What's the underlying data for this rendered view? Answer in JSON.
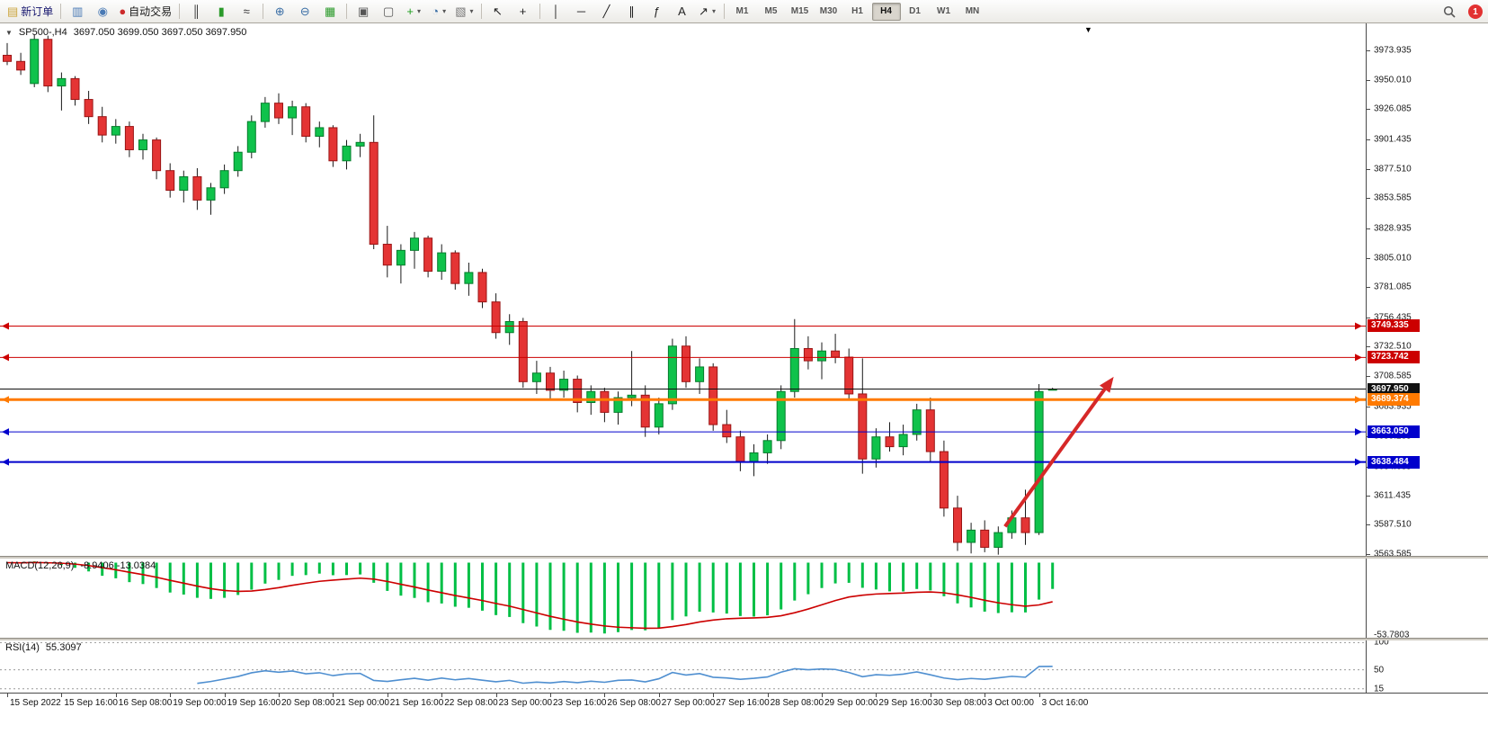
{
  "toolbar": {
    "items": [
      {
        "name": "new-order-button",
        "glyph": "▤",
        "glyph_color": "#caa43a",
        "label": "新订单",
        "label_color": "#16166e"
      },
      {
        "kind": "sep"
      },
      {
        "name": "charts-window-button",
        "glyph": "▥",
        "glyph_color": "#4a7ab5"
      },
      {
        "name": "data-window-button",
        "glyph": "◉",
        "glyph_color": "#4a7ab5"
      },
      {
        "name": "auto-trading-button",
        "glyph": "●",
        "glyph_color": "#cc2b2b",
        "label": "自动交易",
        "label_color": "#1a1a1a"
      },
      {
        "kind": "sep"
      },
      {
        "name": "bars-chart-button",
        "glyph": "║",
        "glyph_color": "#333333"
      },
      {
        "name": "candlestick-chart-button",
        "glyph": "▮",
        "glyph_color": "#2a9a2a"
      },
      {
        "name": "line-chart-button",
        "glyph": "≈",
        "glyph_color": "#333333"
      },
      {
        "kind": "sep"
      },
      {
        "name": "zoom-in-button",
        "glyph": "⊕",
        "glyph_color": "#3a6ea5"
      },
      {
        "name": "zoom-out-button",
        "glyph": "⊖",
        "glyph_color": "#3a6ea5"
      },
      {
        "name": "grid-button",
        "glyph": "▦",
        "glyph_color": "#2a9a2a"
      },
      {
        "kind": "sep"
      },
      {
        "name": "tile-windows-button",
        "glyph": "▣",
        "glyph_color": "#555555"
      },
      {
        "name": "arrange-windows-button",
        "glyph": "▢",
        "glyph_color": "#555555"
      },
      {
        "name": "indicators-button",
        "glyph": "+",
        "glyph_color": "#1f9e1f",
        "dropdown": true
      },
      {
        "name": "periods-button",
        "glyph": "◔",
        "glyph_color": "#3a6ea5",
        "dropdown": true
      },
      {
        "name": "templates-button",
        "glyph": "▧",
        "glyph_color": "#777777",
        "dropdown": true
      },
      {
        "kind": "sep"
      },
      {
        "name": "cursor-button",
        "glyph": "↖",
        "glyph_color": "#222222"
      },
      {
        "name": "crosshair-button",
        "glyph": "+",
        "glyph_color": "#222222"
      },
      {
        "kind": "sep"
      },
      {
        "name": "vertical-line-button",
        "glyph": "│",
        "glyph_color": "#222222"
      },
      {
        "name": "horizontal-line-button",
        "glyph": "─",
        "glyph_color": "#222222"
      },
      {
        "name": "trendline-button",
        "glyph": "╱",
        "glyph_color": "#222222"
      },
      {
        "name": "channel-button",
        "glyph": "∥",
        "glyph_color": "#222222"
      },
      {
        "name": "fibonacci-button",
        "glyph": "ƒ",
        "glyph_color": "#222222"
      },
      {
        "name": "text-button",
        "glyph": "A",
        "glyph_color": "#222222"
      },
      {
        "name": "arrows-button",
        "glyph": "↗",
        "glyph_color": "#222222",
        "dropdown": true
      },
      {
        "kind": "sep"
      }
    ],
    "timeframes": [
      "M1",
      "M5",
      "M15",
      "M30",
      "H1",
      "H4",
      "D1",
      "W1",
      "MN"
    ],
    "active_timeframe": "H4",
    "notification_count": "1"
  },
  "chart": {
    "symbol_label": "SP500-,H4",
    "ohlc_label": "3697.050 3699.050 3697.050 3697.950",
    "shift_marker": "▼",
    "dropdown_glyph": "▼",
    "macd_label": "MACD(12,26,9)",
    "macd_values": "-8.9406 -13.0384",
    "rsi_label": "RSI(14)",
    "rsi_value": "55.3097"
  },
  "chart_data": {
    "type": "candlestick",
    "symbol": "SP500-",
    "timeframe": "H4",
    "current_bar": {
      "open": 3697.05,
      "high": 3699.05,
      "low": 3697.05,
      "close": 3697.95
    },
    "ylim": [
      3562,
      3996
    ],
    "rsi_ylim": [
      8,
      104
    ],
    "bars_per_label": 4,
    "x_labels": [
      "15 Sep 2022",
      "15 Sep 16:00",
      "16 Sep 08:00",
      "19 Sep 00:00",
      "19 Sep 16:00",
      "20 Sep 08:00",
      "21 Sep 00:00",
      "21 Sep 16:00",
      "22 Sep 08:00",
      "23 Sep 00:00",
      "23 Sep 16:00",
      "26 Sep 08:00",
      "27 Sep 00:00",
      "27 Sep 16:00",
      "28 Sep 08:00",
      "29 Sep 00:00",
      "29 Sep 16:00",
      "30 Sep 08:00",
      "3 Oct 00:00",
      "3 Oct 16:00"
    ],
    "price_ticks": [
      "3973.935",
      "3950.010",
      "3926.085",
      "3901.435",
      "3877.510",
      "3853.585",
      "3828.935",
      "3805.010",
      "3781.085",
      "3756.435",
      "3732.510",
      "3708.585",
      "3683.935",
      "3659.285",
      "3634.635",
      "3611.435",
      "3587.510",
      "3563.585"
    ],
    "candles": [
      [
        3970,
        3980,
        3962,
        3965
      ],
      [
        3965,
        3972,
        3954,
        3958
      ],
      [
        3947,
        3987,
        3944,
        3983
      ],
      [
        3983,
        3986,
        3940,
        3945
      ],
      [
        3945,
        3956,
        3925,
        3951
      ],
      [
        3951,
        3953,
        3929,
        3934
      ],
      [
        3934,
        3941,
        3914,
        3920
      ],
      [
        3920,
        3928,
        3899,
        3905
      ],
      [
        3905,
        3918,
        3898,
        3912
      ],
      [
        3912,
        3916,
        3887,
        3893
      ],
      [
        3893,
        3906,
        3885,
        3901
      ],
      [
        3901,
        3903,
        3869,
        3876
      ],
      [
        3876,
        3882,
        3854,
        3860
      ],
      [
        3860,
        3876,
        3850,
        3871
      ],
      [
        3871,
        3878,
        3844,
        3852
      ],
      [
        3852,
        3866,
        3840,
        3862
      ],
      [
        3862,
        3881,
        3857,
        3876
      ],
      [
        3876,
        3896,
        3871,
        3891
      ],
      [
        3891,
        3921,
        3886,
        3916
      ],
      [
        3916,
        3936,
        3911,
        3931
      ],
      [
        3931,
        3939,
        3914,
        3919
      ],
      [
        3919,
        3933,
        3905,
        3928
      ],
      [
        3928,
        3931,
        3899,
        3904
      ],
      [
        3904,
        3916,
        3895,
        3911
      ],
      [
        3911,
        3913,
        3879,
        3884
      ],
      [
        3884,
        3901,
        3877,
        3896
      ],
      [
        3896,
        3906,
        3887,
        3899
      ],
      [
        3899,
        3921,
        3812,
        3816
      ],
      [
        3816,
        3831,
        3789,
        3799
      ],
      [
        3799,
        3816,
        3784,
        3811
      ],
      [
        3811,
        3826,
        3796,
        3821
      ],
      [
        3821,
        3823,
        3789,
        3794
      ],
      [
        3794,
        3816,
        3787,
        3809
      ],
      [
        3809,
        3811,
        3779,
        3784
      ],
      [
        3784,
        3801,
        3774,
        3793
      ],
      [
        3793,
        3796,
        3764,
        3769
      ],
      [
        3769,
        3776,
        3739,
        3744
      ],
      [
        3744,
        3759,
        3734,
        3753
      ],
      [
        3753,
        3756,
        3699,
        3704
      ],
      [
        3704,
        3721,
        3694,
        3711
      ],
      [
        3711,
        3716,
        3689,
        3697
      ],
      [
        3697,
        3713,
        3691,
        3706
      ],
      [
        3706,
        3709,
        3679,
        3687
      ],
      [
        3687,
        3701,
        3677,
        3696
      ],
      [
        3696,
        3699,
        3671,
        3679
      ],
      [
        3679,
        3696,
        3669,
        3691
      ],
      [
        3691,
        3729,
        3684,
        3693
      ],
      [
        3693,
        3701,
        3659,
        3667
      ],
      [
        3667,
        3691,
        3661,
        3686
      ],
      [
        3686,
        3739,
        3681,
        3733
      ],
      [
        3733,
        3741,
        3699,
        3704
      ],
      [
        3704,
        3723,
        3694,
        3716
      ],
      [
        3716,
        3719,
        3664,
        3669
      ],
      [
        3669,
        3681,
        3654,
        3659
      ],
      [
        3659,
        3664,
        3631,
        3639
      ],
      [
        3639,
        3653,
        3627,
        3646
      ],
      [
        3646,
        3661,
        3637,
        3656
      ],
      [
        3656,
        3701,
        3649,
        3696
      ],
      [
        3696,
        3755,
        3691,
        3731
      ],
      [
        3731,
        3741,
        3714,
        3721
      ],
      [
        3721,
        3736,
        3706,
        3729
      ],
      [
        3729,
        3743,
        3719,
        3724
      ],
      [
        3724,
        3731,
        3689,
        3694
      ],
      [
        3694,
        3723,
        3629,
        3641
      ],
      [
        3641,
        3666,
        3634,
        3659
      ],
      [
        3659,
        3671,
        3647,
        3651
      ],
      [
        3651,
        3669,
        3644,
        3661
      ],
      [
        3661,
        3686,
        3656,
        3681
      ],
      [
        3681,
        3691,
        3639,
        3647
      ],
      [
        3647,
        3656,
        3594,
        3601
      ],
      [
        3601,
        3611,
        3566,
        3573
      ],
      [
        3573,
        3589,
        3564,
        3583
      ],
      [
        3583,
        3591,
        3565,
        3569
      ],
      [
        3569,
        3586,
        3563,
        3581
      ],
      [
        3581,
        3599,
        3576,
        3593
      ],
      [
        3593,
        3616,
        3571,
        3581
      ],
      [
        3581,
        3702,
        3579,
        3696
      ],
      [
        3697.05,
        3699.05,
        3697.05,
        3697.95
      ]
    ],
    "colors": {
      "bull": "#0fc24b",
      "bear": "#e43434",
      "bull_stroke": "#067d2c",
      "bear_stroke": "#9a1515",
      "wick": "#1a1a1a",
      "macd_hist": "#00bf45",
      "macd_signal": "#cc0000",
      "rsi_line": "#4f8fd0",
      "level_dashed": "#999999",
      "arrow": "#d62828"
    },
    "level_lines": [
      {
        "name": "resistance-line-1",
        "price": 3749.335,
        "label": "3749.335",
        "color": "#cc0000",
        "tag_bg": "#cc0000",
        "width": 1,
        "markers": true
      },
      {
        "name": "resistance-line-2",
        "price": 3723.742,
        "label": "3723.742",
        "color": "#cc0000",
        "tag_bg": "#cc0000",
        "width": 1,
        "markers": true
      },
      {
        "name": "current-price-line",
        "price": 3697.95,
        "label": "3697.950",
        "color": "#111111",
        "tag_bg": "#111111",
        "width": 1,
        "markers": false
      },
      {
        "name": "pivot-line",
        "price": 3689.374,
        "label": "3689.374",
        "color": "#ff7a00",
        "tag_bg": "#ff7a00",
        "width": 3,
        "markers": true
      },
      {
        "name": "support-line-1",
        "price": 3663.05,
        "label": "3663.050",
        "color": "#0000cc",
        "tag_bg": "#0000cc",
        "width": 1,
        "markers": true
      },
      {
        "name": "support-line-2",
        "price": 3638.484,
        "label": "3638.484",
        "color": "#0000cc",
        "tag_bg": "#0000cc",
        "width": 2,
        "markers": true
      }
    ],
    "trend_arrow": {
      "from_bar": 73.5,
      "from_price": 3586,
      "to_bar": 81.5,
      "to_price": 3708
    },
    "macd": {
      "params": [
        12,
        26,
        9
      ],
      "value": -8.9406,
      "signal": -13.0384,
      "axis_label": "-53.7803"
    },
    "rsi": {
      "period": 14,
      "value": 55.3097,
      "levels": [
        100,
        50,
        15
      ],
      "level_labels": [
        "100",
        "50",
        "15"
      ]
    }
  }
}
